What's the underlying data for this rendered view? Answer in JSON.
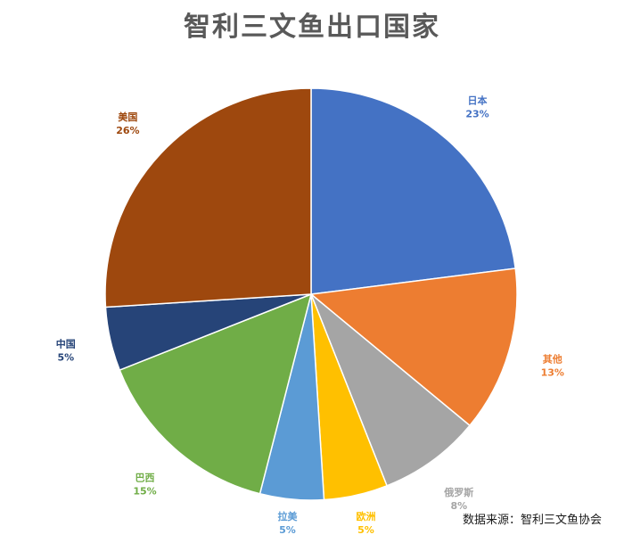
{
  "chart_data": {
    "type": "pie",
    "title": "智利三文鱼出口国家",
    "slices": [
      {
        "label": "日本",
        "value": 23,
        "display": "23%",
        "color": "#4472C4"
      },
      {
        "label": "其他",
        "value": 13,
        "display": "13%",
        "color": "#ED7D31"
      },
      {
        "label": "俄罗斯",
        "value": 8,
        "display": "8%",
        "color": "#A5A5A5"
      },
      {
        "label": "欧洲",
        "value": 5,
        "display": "5%",
        "color": "#FFC000"
      },
      {
        "label": "拉美",
        "value": 5,
        "display": "5%",
        "color": "#5B9BD5"
      },
      {
        "label": "巴西",
        "value": 15,
        "display": "15%",
        "color": "#70AD47"
      },
      {
        "label": "中国",
        "value": 5,
        "display": "5%",
        "color": "#264478"
      },
      {
        "label": "美国",
        "value": 26,
        "display": "26%",
        "color": "#9E480E"
      }
    ],
    "start_angle": "12 o'clock",
    "direction": "clockwise",
    "legend": "none",
    "data_labels": "outside, category name and percentage"
  },
  "source": "数据来源：智利三文鱼协会"
}
